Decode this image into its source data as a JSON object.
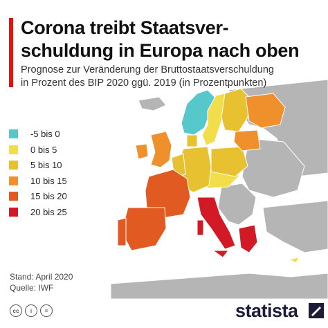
{
  "header": {
    "title_line1": "Corona treibt Staatsver-",
    "title_line2": "schuldung in Europa nach oben",
    "subtitle_line1": "Prognose zur Veränderung der Bruttostaatsverschuldung",
    "subtitle_line2": "in Prozent des BIP 2020 ggü. 2019 (in Prozentpunkten)"
  },
  "legend": [
    {
      "label": "-5 bis 0",
      "color": "#56c8cc"
    },
    {
      "label": "0 bis 5",
      "color": "#f2dd4a"
    },
    {
      "label": "5 bis 10",
      "color": "#e8c130"
    },
    {
      "label": "10 bis 15",
      "color": "#f0902c"
    },
    {
      "label": "15 bis 20",
      "color": "#e05a22"
    },
    {
      "label": "20 bis 25",
      "color": "#d11a25"
    }
  ],
  "source": {
    "stand": "Stand: April 2020",
    "quelle": "Quelle: IWF"
  },
  "footer": {
    "brand": "statista",
    "cc_icons": [
      "cc-icon",
      "by-icon",
      "nd-icon"
    ],
    "cc_labels": [
      "cc",
      "i",
      "="
    ]
  },
  "map_colors": {
    "sea": "#ffffff",
    "no_data": "#b5b5b5",
    "border": "#ffffff",
    "accent": "#e3120b"
  }
}
